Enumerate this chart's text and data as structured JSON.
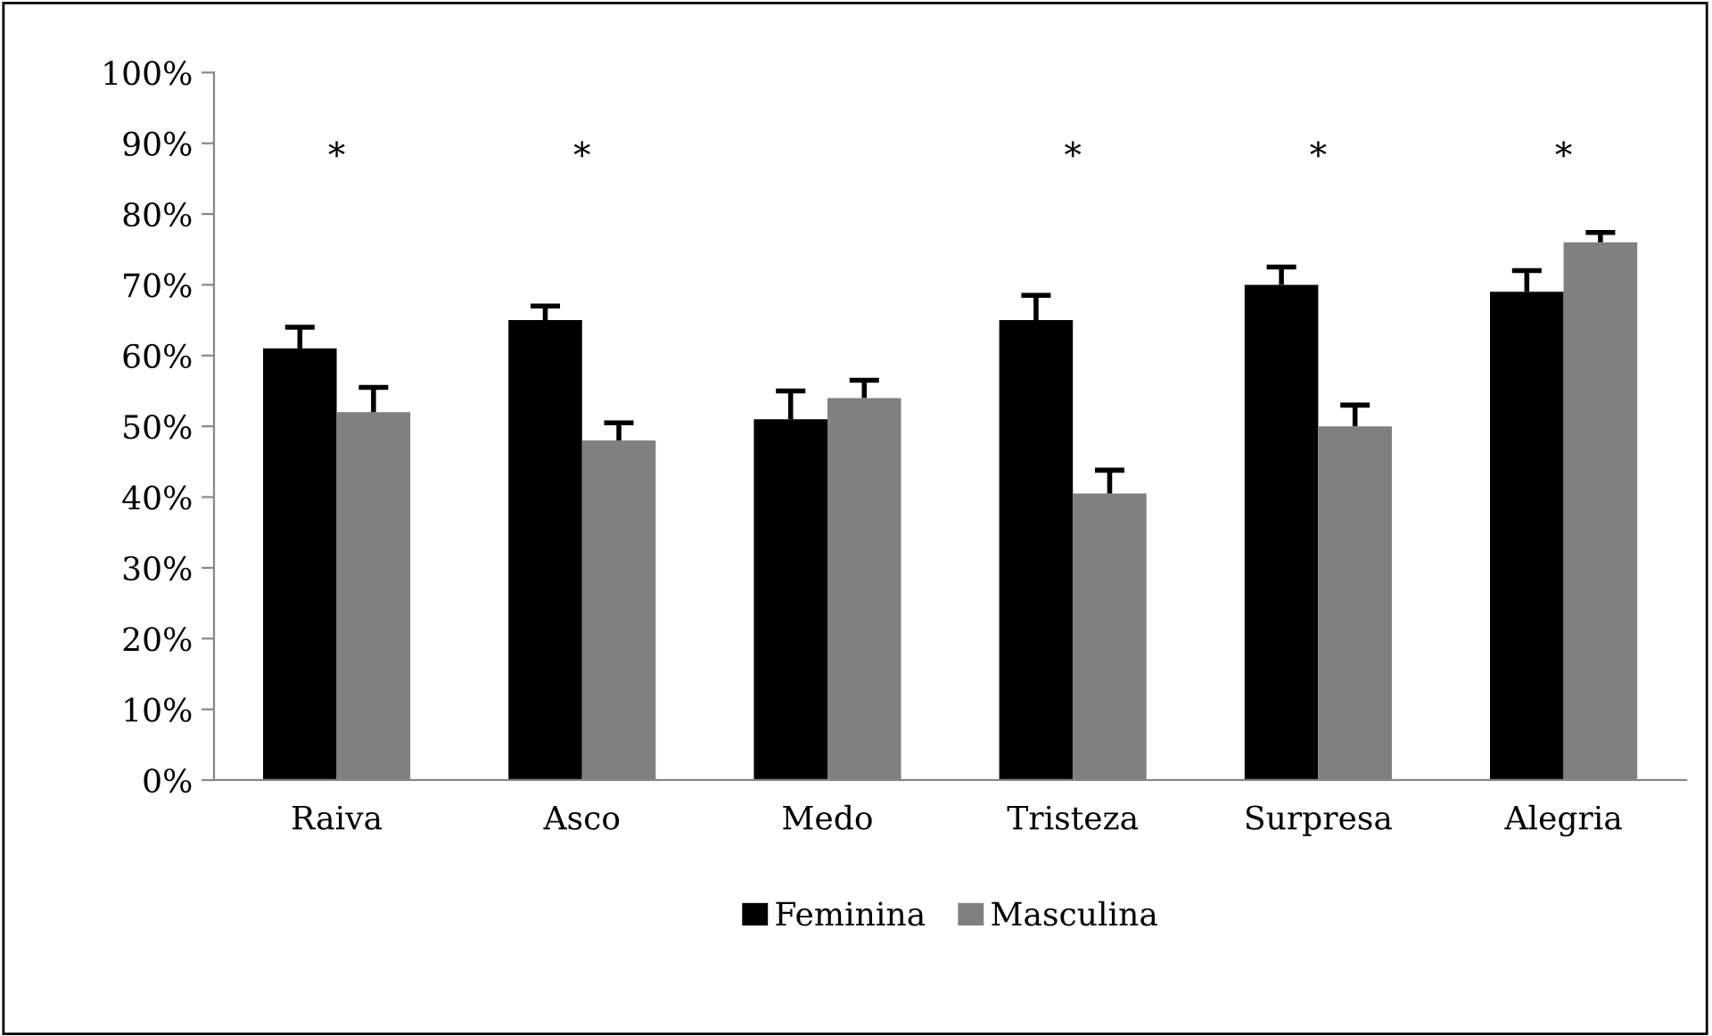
{
  "chart_data": {
    "type": "bar",
    "categories": [
      "Raiva",
      "Asco",
      "Medo",
      "Tristeza",
      "Surpresa",
      "Alegria"
    ],
    "series": [
      {
        "name": "Feminina",
        "color": "#000000",
        "values": [
          61,
          65,
          51,
          65,
          70,
          69
        ],
        "errors": [
          [
            61,
            64
          ],
          [
            65,
            67
          ],
          [
            51,
            55
          ],
          [
            65,
            68.5
          ],
          [
            70,
            72.5
          ],
          [
            69,
            72
          ]
        ]
      },
      {
        "name": "Masculina",
        "color": "#808080",
        "values": [
          52,
          48,
          54,
          40.5,
          50,
          76
        ],
        "errors": [
          [
            52,
            55.5
          ],
          [
            48,
            50.5
          ],
          [
            54,
            56.5
          ],
          [
            40.5,
            43.8
          ],
          [
            50,
            53
          ],
          [
            76,
            77.4
          ]
        ]
      }
    ],
    "ylim": [
      0,
      100
    ],
    "yticks": [
      {
        "value": 0,
        "label": "0%"
      },
      {
        "value": 10,
        "label": "10%"
      },
      {
        "value": 20,
        "label": "20%"
      },
      {
        "value": 30,
        "label": "30%"
      },
      {
        "value": 40,
        "label": "40%"
      },
      {
        "value": 50,
        "label": "50%"
      },
      {
        "value": 60,
        "label": "60%"
      },
      {
        "value": 70,
        "label": "70%"
      },
      {
        "value": 80,
        "label": "80%"
      },
      {
        "value": 90,
        "label": "90%"
      },
      {
        "value": 100,
        "label": "100%"
      }
    ],
    "annotations": [
      "*",
      "*",
      "*",
      "*",
      "*"
    ],
    "legend": "bottom",
    "grid": false
  }
}
